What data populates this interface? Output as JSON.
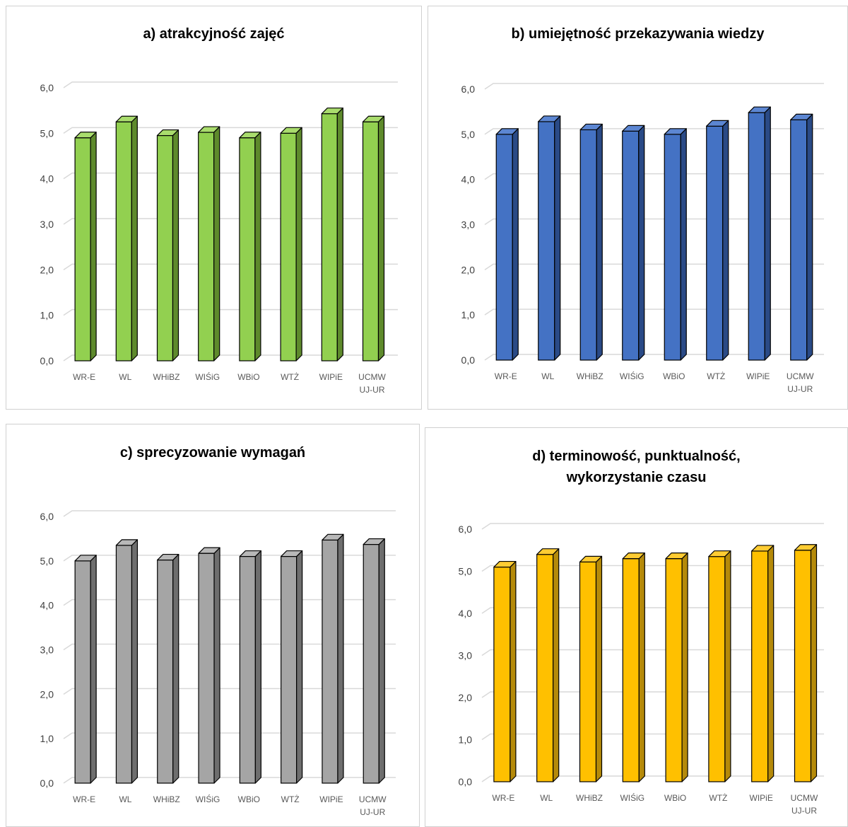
{
  "chart_data": [
    {
      "id": "a",
      "type": "bar",
      "title": [
        "a) atrakcyjność zajęć"
      ],
      "categories": [
        [
          "WR-E"
        ],
        [
          "WL"
        ],
        [
          "WHiBZ"
        ],
        [
          "WIŚiG"
        ],
        [
          "WBiO"
        ],
        [
          "WTŻ"
        ],
        [
          "WIPiE"
        ],
        [
          "UCMW",
          "UJ-UR"
        ]
      ],
      "values": [
        4.9,
        5.25,
        4.95,
        5.02,
        4.9,
        5.0,
        5.43,
        5.25
      ],
      "ylim": [
        0,
        6
      ],
      "yticks": [
        "0,0",
        "1,0",
        "2,0",
        "3,0",
        "4,0",
        "5,0",
        "6,0"
      ],
      "grid": true,
      "legend": "none",
      "colors": {
        "front": "#92d050",
        "side": "#5e8a2c",
        "top": "#a9dc6d",
        "outline": "#000000"
      }
    },
    {
      "id": "b",
      "type": "bar",
      "title": [
        "b) umiejętność przekazywania wiedzy"
      ],
      "categories": [
        [
          "WR-E"
        ],
        [
          "WL"
        ],
        [
          "WHiBZ"
        ],
        [
          "WIŚiG"
        ],
        [
          "WBiO"
        ],
        [
          "WTŻ"
        ],
        [
          "WIPiE"
        ],
        [
          "UCMW",
          "UJ-UR"
        ]
      ],
      "values": [
        5.0,
        5.28,
        5.1,
        5.07,
        5.0,
        5.18,
        5.48,
        5.32
      ],
      "ylim": [
        0,
        6
      ],
      "yticks": [
        "0,0",
        "1,0",
        "2,0",
        "3,0",
        "4,0",
        "5,0",
        "6,0"
      ],
      "grid": true,
      "legend": "none",
      "colors": {
        "front": "#4472c4",
        "side": "#2a4a86",
        "top": "#5c86d2",
        "outline": "#000000"
      }
    },
    {
      "id": "c",
      "type": "bar",
      "title": [
        "c) sprecyzowanie wymagań"
      ],
      "categories": [
        [
          "WR-E"
        ],
        [
          "WL"
        ],
        [
          "WHiBZ"
        ],
        [
          "WIŚiG"
        ],
        [
          "WBiO"
        ],
        [
          "WTŻ"
        ],
        [
          "WIPiE"
        ],
        [
          "UCMW",
          "UJ-UR"
        ]
      ],
      "values": [
        5.0,
        5.35,
        5.02,
        5.17,
        5.1,
        5.1,
        5.47,
        5.37
      ],
      "ylim": [
        0,
        6
      ],
      "yticks": [
        "0,0",
        "1,0",
        "2,0",
        "3,0",
        "4,0",
        "5,0",
        "6,0"
      ],
      "grid": true,
      "legend": "none",
      "colors": {
        "front": "#a5a5a5",
        "side": "#6e6e6e",
        "top": "#b8b8b8",
        "outline": "#000000"
      }
    },
    {
      "id": "d",
      "type": "bar",
      "title": [
        "d) terminowość, punktualność,",
        "wykorzystanie czasu"
      ],
      "categories": [
        [
          "WR-E"
        ],
        [
          "WL"
        ],
        [
          "WHiBZ"
        ],
        [
          "WIŚiG"
        ],
        [
          "WBiO"
        ],
        [
          "WTŻ"
        ],
        [
          "WIPiE"
        ],
        [
          "UCMW",
          "UJ-UR"
        ]
      ],
      "values": [
        5.1,
        5.4,
        5.22,
        5.3,
        5.3,
        5.35,
        5.48,
        5.5
      ],
      "ylim": [
        0,
        6
      ],
      "yticks": [
        "0,0",
        "1,0",
        "2,0",
        "3,0",
        "4,0",
        "5,0",
        "6,0"
      ],
      "grid": true,
      "legend": "none",
      "colors": {
        "front": "#ffc000",
        "side": "#b58a0a",
        "top": "#ffcc33",
        "outline": "#000000"
      }
    }
  ]
}
